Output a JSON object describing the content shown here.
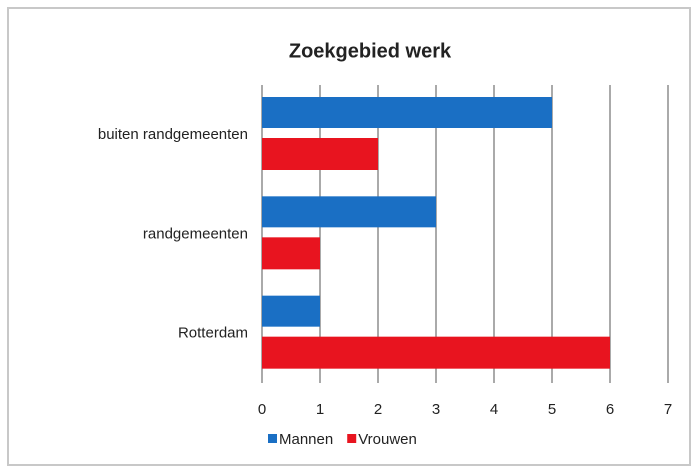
{
  "chart_data": {
    "type": "hbar",
    "title": "Zoekgebied werk",
    "categories": [
      "buiten randgemeenten",
      "randgemeenten",
      "Rotterdam"
    ],
    "series": [
      {
        "name": "Mannen",
        "color": "#1a6fc4",
        "values": [
          5,
          3,
          1
        ]
      },
      {
        "name": "Vrouwen",
        "color": "#e8141f",
        "values": [
          2,
          1,
          6
        ]
      }
    ],
    "xlim": [
      0,
      7
    ],
    "xticks": [
      0,
      1,
      2,
      3,
      4,
      5,
      6,
      7
    ],
    "grid": true
  }
}
